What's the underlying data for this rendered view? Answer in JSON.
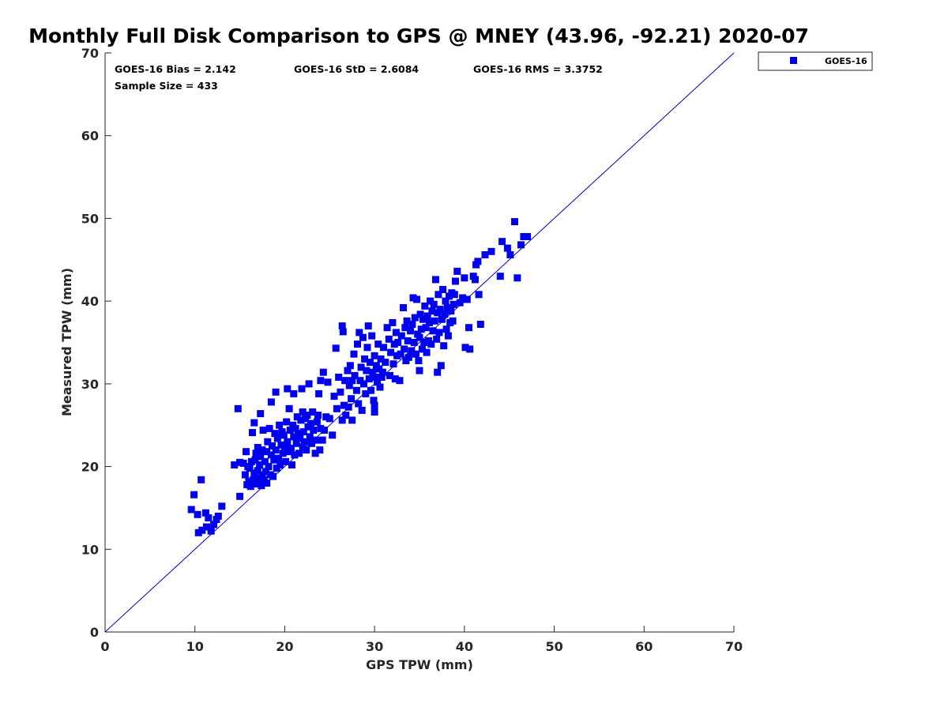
{
  "chart_data": {
    "type": "scatter",
    "title": "Monthly Full Disk Comparison to GPS @ MNEY (43.96, -92.21) 2020-07",
    "xlabel": "GPS TPW (mm)",
    "ylabel": "Measured TPW (mm)",
    "xlim": [
      0,
      70
    ],
    "ylim": [
      0,
      70
    ],
    "xticks": [
      "0",
      "10",
      "20",
      "30",
      "40",
      "50",
      "60",
      "70"
    ],
    "yticks": [
      "0",
      "10",
      "20",
      "30",
      "40",
      "50",
      "60",
      "70"
    ],
    "grid": false,
    "legend": {
      "placement": "outside-top-right",
      "entries": [
        "GOES-16"
      ]
    },
    "reference_line": {
      "from": [
        0,
        0
      ],
      "to": [
        70,
        70
      ],
      "color": "#0000cc"
    },
    "stats": {
      "bias": "GOES-16 Bias = 2.142",
      "std": "GOES-16 StD = 2.6084",
      "rms": "GOES-16 RMS = 3.3752",
      "sample": "Sample Size = 433"
    },
    "series": [
      {
        "name": "GOES-16",
        "color": "#0000ee",
        "marker": "square",
        "points": [
          [
            9.6,
            14.8
          ],
          [
            9.9,
            16.6
          ],
          [
            10.3,
            14.2
          ],
          [
            10.4,
            12.0
          ],
          [
            10.7,
            18.4
          ],
          [
            10.8,
            12.3
          ],
          [
            11.2,
            14.4
          ],
          [
            11.3,
            12.7
          ],
          [
            11.5,
            13.8
          ],
          [
            11.8,
            12.2
          ],
          [
            12.1,
            13.0
          ],
          [
            12.4,
            13.6
          ],
          [
            12.6,
            14.0
          ],
          [
            13.0,
            15.2
          ],
          [
            14.4,
            20.2
          ],
          [
            14.8,
            27.0
          ],
          [
            15.0,
            16.4
          ],
          [
            15.0,
            20.5
          ],
          [
            15.4,
            20.4
          ],
          [
            15.6,
            19.0
          ],
          [
            15.7,
            21.8
          ],
          [
            15.8,
            17.8
          ],
          [
            15.9,
            20.0
          ],
          [
            16.0,
            18.2
          ],
          [
            16.1,
            19.8
          ],
          [
            16.2,
            17.6
          ],
          [
            16.3,
            20.6
          ],
          [
            16.4,
            24.1
          ],
          [
            16.5,
            18.4
          ],
          [
            16.6,
            19.2
          ],
          [
            16.6,
            25.3
          ],
          [
            16.7,
            20.8
          ],
          [
            16.8,
            21.6
          ],
          [
            16.9,
            17.9
          ],
          [
            17.0,
            19.5
          ],
          [
            17.0,
            22.3
          ],
          [
            17.1,
            18.6
          ],
          [
            17.2,
            20.2
          ],
          [
            17.3,
            21.2
          ],
          [
            17.3,
            26.4
          ],
          [
            17.4,
            17.7
          ],
          [
            17.5,
            19.0
          ],
          [
            17.5,
            22.0
          ],
          [
            17.6,
            24.4
          ],
          [
            17.7,
            18.4
          ],
          [
            17.8,
            20.6
          ],
          [
            17.9,
            19.4
          ],
          [
            18.0,
            21.8
          ],
          [
            18.0,
            18.0
          ],
          [
            18.1,
            23.0
          ],
          [
            18.2,
            20.0
          ],
          [
            18.3,
            24.6
          ],
          [
            18.4,
            19.0
          ],
          [
            18.5,
            21.4
          ],
          [
            18.5,
            27.8
          ],
          [
            18.6,
            22.5
          ],
          [
            18.7,
            18.8
          ],
          [
            18.8,
            20.8
          ],
          [
            18.9,
            24.0
          ],
          [
            19.0,
            22.0
          ],
          [
            19.0,
            29.0
          ],
          [
            19.1,
            19.8
          ],
          [
            19.2,
            23.4
          ],
          [
            19.3,
            21.0
          ],
          [
            19.4,
            25.0
          ],
          [
            19.5,
            20.2
          ],
          [
            19.6,
            22.6
          ],
          [
            19.7,
            24.2
          ],
          [
            19.8,
            21.6
          ],
          [
            19.9,
            23.8
          ],
          [
            20.0,
            22.4
          ],
          [
            20.1,
            20.6
          ],
          [
            20.2,
            25.4
          ],
          [
            20.3,
            23.0
          ],
          [
            20.3,
            29.4
          ],
          [
            20.4,
            21.8
          ],
          [
            20.5,
            27.0
          ],
          [
            20.6,
            24.4
          ],
          [
            20.7,
            22.2
          ],
          [
            20.8,
            20.2
          ],
          [
            20.9,
            25.0
          ],
          [
            21.0,
            23.6
          ],
          [
            21.0,
            28.8
          ],
          [
            21.1,
            21.4
          ],
          [
            21.2,
            24.6
          ],
          [
            21.3,
            22.8
          ],
          [
            21.4,
            26.0
          ],
          [
            21.5,
            24.0
          ],
          [
            21.6,
            21.6
          ],
          [
            21.7,
            23.4
          ],
          [
            21.8,
            25.6
          ],
          [
            21.9,
            29.4
          ],
          [
            22.0,
            22.4
          ],
          [
            22.0,
            26.6
          ],
          [
            22.1,
            24.2
          ],
          [
            22.2,
            23.0
          ],
          [
            22.3,
            25.8
          ],
          [
            22.4,
            22.0
          ],
          [
            22.5,
            26.2
          ],
          [
            22.6,
            24.8
          ],
          [
            22.7,
            30.0
          ],
          [
            22.8,
            23.6
          ],
          [
            22.9,
            25.2
          ],
          [
            23.0,
            22.8
          ],
          [
            23.1,
            26.6
          ],
          [
            23.2,
            24.4
          ],
          [
            23.4,
            21.6
          ],
          [
            23.5,
            23.2
          ],
          [
            23.6,
            25.4
          ],
          [
            23.7,
            26.2
          ],
          [
            23.8,
            28.8
          ],
          [
            23.9,
            22.0
          ],
          [
            24.0,
            24.6
          ],
          [
            24.0,
            30.4
          ],
          [
            24.2,
            23.2
          ],
          [
            24.3,
            31.4
          ],
          [
            24.4,
            24.4
          ],
          [
            24.6,
            26.0
          ],
          [
            24.8,
            30.2
          ],
          [
            25.0,
            25.8
          ],
          [
            25.3,
            23.8
          ],
          [
            25.5,
            28.5
          ],
          [
            25.7,
            34.3
          ],
          [
            25.8,
            27.0
          ],
          [
            26.0,
            30.8
          ],
          [
            26.2,
            29.0
          ],
          [
            26.4,
            37.0
          ],
          [
            26.4,
            25.6
          ],
          [
            26.5,
            36.3
          ],
          [
            26.6,
            27.4
          ],
          [
            26.7,
            30.4
          ],
          [
            26.8,
            26.2
          ],
          [
            27.0,
            31.6
          ],
          [
            27.1,
            27.2
          ],
          [
            27.2,
            29.8
          ],
          [
            27.3,
            32.2
          ],
          [
            27.4,
            28.2
          ],
          [
            27.5,
            30.4
          ],
          [
            27.5,
            25.6
          ],
          [
            27.7,
            33.6
          ],
          [
            27.8,
            31.0
          ],
          [
            28.0,
            29.2
          ],
          [
            28.1,
            34.8
          ],
          [
            28.2,
            27.6
          ],
          [
            28.3,
            36.2
          ],
          [
            28.4,
            30.4
          ],
          [
            28.5,
            32.0
          ],
          [
            28.6,
            26.8
          ],
          [
            28.7,
            35.6
          ],
          [
            28.8,
            30.0
          ],
          [
            28.9,
            33.0
          ],
          [
            29.0,
            28.8
          ],
          [
            29.1,
            31.6
          ],
          [
            29.2,
            34.4
          ],
          [
            29.3,
            37.0
          ],
          [
            29.4,
            30.6
          ],
          [
            29.5,
            32.6
          ],
          [
            29.6,
            29.2
          ],
          [
            29.7,
            35.8
          ],
          [
            29.8,
            31.4
          ],
          [
            29.9,
            28.0
          ],
          [
            30.0,
            33.4
          ],
          [
            30.0,
            26.6
          ],
          [
            30.0,
            27.4
          ],
          [
            30.1,
            30.8
          ],
          [
            30.2,
            32.2
          ],
          [
            30.3,
            30.2
          ],
          [
            30.4,
            34.8
          ],
          [
            30.5,
            31.8
          ],
          [
            30.6,
            29.6
          ],
          [
            30.7,
            33.0
          ],
          [
            30.8,
            30.8
          ],
          [
            30.9,
            31.4
          ],
          [
            31.0,
            34.4
          ],
          [
            31.2,
            32.6
          ],
          [
            31.4,
            36.8
          ],
          [
            31.6,
            35.4
          ],
          [
            31.7,
            31.0
          ],
          [
            31.8,
            33.8
          ],
          [
            32.0,
            37.4
          ],
          [
            32.1,
            32.4
          ],
          [
            32.2,
            34.8
          ],
          [
            32.3,
            30.6
          ],
          [
            32.4,
            36.2
          ],
          [
            32.5,
            33.4
          ],
          [
            32.6,
            35.0
          ],
          [
            32.8,
            30.4
          ],
          [
            32.9,
            33.6
          ],
          [
            33.0,
            35.8
          ],
          [
            33.2,
            39.2
          ],
          [
            33.3,
            34.2
          ],
          [
            33.4,
            36.8
          ],
          [
            33.5,
            32.8
          ],
          [
            33.6,
            37.6
          ],
          [
            33.7,
            35.2
          ],
          [
            33.8,
            33.2
          ],
          [
            34.0,
            36.4
          ],
          [
            34.1,
            34.0
          ],
          [
            34.2,
            37.2
          ],
          [
            34.3,
            40.4
          ],
          [
            34.4,
            35.0
          ],
          [
            34.5,
            38.0
          ],
          [
            34.6,
            33.6
          ],
          [
            34.7,
            40.2
          ],
          [
            34.8,
            36.0
          ],
          [
            34.9,
            32.8
          ],
          [
            35.0,
            35.6
          ],
          [
            35.0,
            31.6
          ],
          [
            35.1,
            38.4
          ],
          [
            35.2,
            36.6
          ],
          [
            35.3,
            34.2
          ],
          [
            35.4,
            37.8
          ],
          [
            35.5,
            35.0
          ],
          [
            35.6,
            39.4
          ],
          [
            35.7,
            36.8
          ],
          [
            35.8,
            33.8
          ],
          [
            35.9,
            38.2
          ],
          [
            36.0,
            35.2
          ],
          [
            36.1,
            37.4
          ],
          [
            36.2,
            40.0
          ],
          [
            36.3,
            34.8
          ],
          [
            36.4,
            38.8
          ],
          [
            36.5,
            36.4
          ],
          [
            36.6,
            39.6
          ],
          [
            36.7,
            37.6
          ],
          [
            36.8,
            42.6
          ],
          [
            36.9,
            35.4
          ],
          [
            37.0,
            38.6
          ],
          [
            37.0,
            31.4
          ],
          [
            37.1,
            40.8
          ],
          [
            37.2,
            36.2
          ],
          [
            37.3,
            39.0
          ],
          [
            37.4,
            32.2
          ],
          [
            37.5,
            37.8
          ],
          [
            37.6,
            41.4
          ],
          [
            37.7,
            34.6
          ],
          [
            37.8,
            38.4
          ],
          [
            37.9,
            40.0
          ],
          [
            38.0,
            36.6
          ],
          [
            38.1,
            39.2
          ],
          [
            38.2,
            35.8
          ],
          [
            38.3,
            40.6
          ],
          [
            38.4,
            37.4
          ],
          [
            38.5,
            38.8
          ],
          [
            38.6,
            41.0
          ],
          [
            38.7,
            37.6
          ],
          [
            38.8,
            39.6
          ],
          [
            38.9,
            40.8
          ],
          [
            39.0,
            42.4
          ],
          [
            39.2,
            43.6
          ],
          [
            39.5,
            39.8
          ],
          [
            39.8,
            40.4
          ],
          [
            40.0,
            42.8
          ],
          [
            40.1,
            34.4
          ],
          [
            40.3,
            40.2
          ],
          [
            40.5,
            36.8
          ],
          [
            40.6,
            34.2
          ],
          [
            41.0,
            43.0
          ],
          [
            41.2,
            42.6
          ],
          [
            41.3,
            44.4
          ],
          [
            41.5,
            44.8
          ],
          [
            41.6,
            40.8
          ],
          [
            41.8,
            37.2
          ],
          [
            42.3,
            45.6
          ],
          [
            43.0,
            46.0
          ],
          [
            44.0,
            43.0
          ],
          [
            44.2,
            47.2
          ],
          [
            44.8,
            46.4
          ],
          [
            45.1,
            45.6
          ],
          [
            45.6,
            49.6
          ],
          [
            45.9,
            42.8
          ],
          [
            46.3,
            46.8
          ],
          [
            46.6,
            47.8
          ],
          [
            47.0,
            47.8
          ]
        ]
      }
    ]
  }
}
